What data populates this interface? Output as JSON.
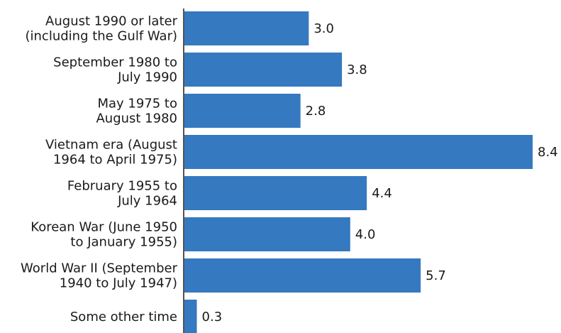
{
  "chart_data": {
    "type": "bar",
    "orientation": "horizontal",
    "categories": [
      [
        "August 1990 or later",
        "(including the Gulf War)"
      ],
      [
        "September 1980 to",
        "July 1990"
      ],
      [
        "May 1975 to",
        "August 1980"
      ],
      [
        "Vietnam era (August",
        "1964 to April 1975)"
      ],
      [
        "February 1955 to",
        "July 1964"
      ],
      [
        "Korean War (June 1950",
        "to January 1955)"
      ],
      [
        "World War II (September",
        "1940 to July 1947)"
      ],
      [
        "Some other time"
      ]
    ],
    "values": [
      3.0,
      3.8,
      2.8,
      8.4,
      4.4,
      4.0,
      5.7,
      0.3
    ],
    "value_labels": [
      "3.0",
      "3.8",
      "2.8",
      "8.4",
      "4.4",
      "4.0",
      "5.7",
      "0.3"
    ],
    "xlim": [
      0,
      8.4
    ],
    "bar_color": "#3579c0",
    "axis_color": "#1a1a1a",
    "grid": false,
    "legend": "none"
  }
}
